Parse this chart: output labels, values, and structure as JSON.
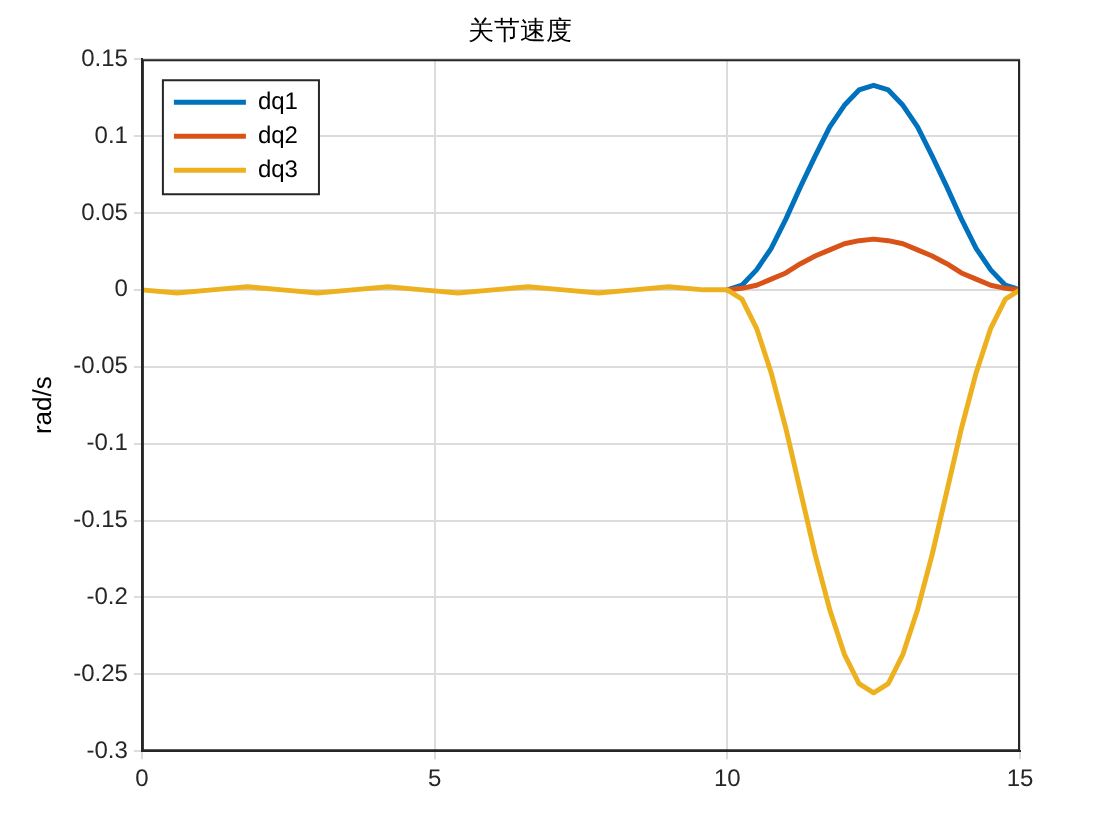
{
  "chart_data": {
    "type": "line",
    "title": "关节速度",
    "ylabel": "rad/s",
    "x": [
      0,
      0.6,
      1.2,
      1.8,
      2.4,
      3.0,
      3.6,
      4.2,
      4.8,
      5.4,
      6.0,
      6.6,
      7.2,
      7.8,
      8.4,
      9.0,
      9.6,
      10,
      10.25,
      10.5,
      10.75,
      11,
      11.25,
      11.5,
      11.75,
      12,
      12.25,
      12.5,
      12.75,
      13,
      13.25,
      13.5,
      13.75,
      14,
      14.25,
      14.5,
      14.75,
      15
    ],
    "series": [
      {
        "name": "dq1",
        "color": "#0072bd",
        "values": [
          null,
          null,
          null,
          null,
          null,
          null,
          null,
          null,
          null,
          null,
          null,
          null,
          null,
          null,
          null,
          null,
          null,
          0,
          0.003,
          0.013,
          0.027,
          0.046,
          0.067,
          0.087,
          0.106,
          0.12,
          0.13,
          0.133,
          0.13,
          0.12,
          0.106,
          0.087,
          0.067,
          0.046,
          0.027,
          0.013,
          0.003,
          0
        ]
      },
      {
        "name": "dq2",
        "color": "#d95319",
        "values": [
          null,
          null,
          null,
          null,
          null,
          null,
          null,
          null,
          null,
          null,
          null,
          null,
          null,
          null,
          null,
          null,
          null,
          0,
          0.001,
          0.003,
          0.007,
          0.011,
          0.017,
          0.022,
          0.026,
          0.03,
          0.032,
          0.033,
          0.032,
          0.03,
          0.026,
          0.022,
          0.017,
          0.011,
          0.007,
          0.003,
          0.001,
          0
        ]
      },
      {
        "name": "dq3",
        "color": "#edb120",
        "values": [
          0,
          -0.002,
          0,
          0.002,
          0,
          -0.002,
          0,
          0.002,
          0,
          -0.002,
          0,
          0.002,
          0,
          -0.002,
          0,
          0.002,
          0,
          0,
          -0.006,
          -0.025,
          -0.054,
          -0.09,
          -0.131,
          -0.172,
          -0.208,
          -0.237,
          -0.256,
          -0.262,
          -0.256,
          -0.237,
          -0.208,
          -0.172,
          -0.131,
          -0.09,
          -0.054,
          -0.025,
          -0.006,
          0
        ]
      }
    ],
    "xlim": [
      0,
      15
    ],
    "xticks": [
      0,
      5,
      10,
      15
    ],
    "ylim": [
      -0.3,
      0.15
    ],
    "yticks": [
      -0.3,
      -0.25,
      -0.2,
      -0.15,
      -0.1,
      -0.05,
      0,
      0.05,
      0.1,
      0.15
    ],
    "grid": true,
    "legend": "top left"
  }
}
